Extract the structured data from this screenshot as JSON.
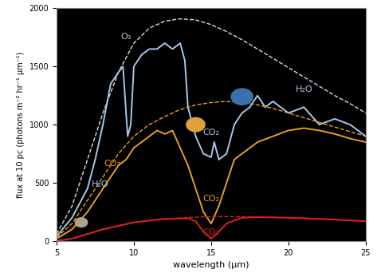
{
  "chart_data": {
    "type": "line",
    "x_label": "wavelength (µm)",
    "y_label": "flux at 10 pc (photons m⁻² hr⁻¹ µm⁻¹)",
    "xlim": [
      5,
      25
    ],
    "xticks": [
      5,
      10,
      15,
      20,
      25
    ],
    "ylim": [
      0,
      2000
    ],
    "yticks": [
      0,
      500,
      1000,
      1500,
      2000
    ],
    "series": [
      {
        "color": "#dddddd",
        "line_style": "dashed",
        "x": [
          5,
          6,
          7,
          8,
          9,
          10,
          11,
          12,
          13,
          14,
          15,
          16,
          17,
          18,
          19,
          20,
          21,
          22,
          23,
          24,
          25
        ],
        "values": [
          60,
          300,
          700,
          1100,
          1450,
          1700,
          1830,
          1890,
          1910,
          1900,
          1860,
          1800,
          1730,
          1650,
          1570,
          1490,
          1410,
          1330,
          1250,
          1180,
          1100
        ]
      },
      {
        "color": "#a8c8e8",
        "line_style": "solid",
        "x": [
          5,
          6,
          7,
          7.5,
          8,
          8.5,
          9,
          9.3,
          9.6,
          9.8,
          10,
          10.5,
          11,
          11.5,
          12,
          12.5,
          13,
          13.3,
          13.5,
          14,
          14.5,
          15,
          15.2,
          15.5,
          16,
          16.5,
          17,
          17.5,
          18,
          18.5,
          19,
          19.5,
          20,
          21,
          22,
          23,
          24,
          25
        ],
        "values": [
          40,
          200,
          450,
          700,
          1000,
          1350,
          1450,
          1500,
          900,
          1000,
          1500,
          1600,
          1650,
          1650,
          1700,
          1650,
          1700,
          1550,
          1150,
          900,
          750,
          720,
          850,
          700,
          750,
          1000,
          1100,
          1150,
          1250,
          1150,
          1200,
          1150,
          1100,
          1150,
          1000,
          1050,
          1000,
          900
        ]
      },
      {
        "color": "#e8a020",
        "line_style": "dashed",
        "x": [
          5,
          6,
          7,
          8,
          9,
          10,
          11,
          12,
          13,
          14,
          15,
          16,
          17,
          18,
          19,
          20,
          21,
          22,
          23,
          24,
          25
        ],
        "values": [
          30,
          150,
          350,
          550,
          750,
          900,
          1000,
          1070,
          1130,
          1170,
          1190,
          1200,
          1190,
          1170,
          1140,
          1100,
          1060,
          1020,
          980,
          940,
          900
        ]
      },
      {
        "color": "#e8a020",
        "line_style": "solid",
        "x": [
          5,
          6,
          7,
          7.5,
          8,
          8.5,
          9,
          9.5,
          10,
          10.5,
          11,
          11.5,
          12,
          12.5,
          13,
          13.5,
          14,
          14.5,
          15,
          15.5,
          16,
          16.5,
          17,
          17.5,
          18,
          19,
          20,
          21,
          22,
          23,
          24,
          25
        ],
        "values": [
          20,
          100,
          250,
          350,
          450,
          550,
          650,
          700,
          800,
          850,
          900,
          950,
          920,
          950,
          800,
          650,
          450,
          250,
          150,
          300,
          500,
          700,
          750,
          800,
          850,
          900,
          950,
          970,
          950,
          920,
          880,
          850
        ]
      },
      {
        "color": "#e02020",
        "line_style": "dashed",
        "x": [
          5,
          6,
          7,
          8,
          10,
          12,
          14,
          16,
          18,
          20,
          22,
          25
        ],
        "values": [
          0,
          20,
          60,
          100,
          160,
          190,
          205,
          210,
          205,
          200,
          190,
          170
        ]
      },
      {
        "color": "#e02020",
        "line_style": "solid",
        "x": [
          5,
          6,
          7,
          8,
          10,
          12,
          13.5,
          14,
          14.5,
          15,
          15.5,
          16,
          17,
          18,
          20,
          22,
          25
        ],
        "values": [
          0,
          20,
          60,
          100,
          160,
          190,
          195,
          170,
          80,
          20,
          80,
          150,
          200,
          205,
          200,
          190,
          170
        ]
      }
    ],
    "annotations": [
      {
        "text": "O₃",
        "x": 9.5,
        "y": 1720,
        "color": "#a8c8e8"
      },
      {
        "text": "H₂O",
        "x": 7.8,
        "y": 450,
        "color": "#a8c8e8"
      },
      {
        "text": "CO₂",
        "x": 15,
        "y": 900,
        "color": "#a8c8e8"
      },
      {
        "text": "H₂O",
        "x": 21,
        "y": 1270,
        "color": "#a8c8e8"
      },
      {
        "text": "CO₂",
        "x": 8.6,
        "y": 630,
        "color": "#e8a020"
      },
      {
        "text": "CO₂",
        "x": 15,
        "y": 330,
        "color": "#e8a020"
      },
      {
        "text": "CO₂",
        "x": 15,
        "y": 40,
        "color": "#e02020"
      }
    ]
  }
}
